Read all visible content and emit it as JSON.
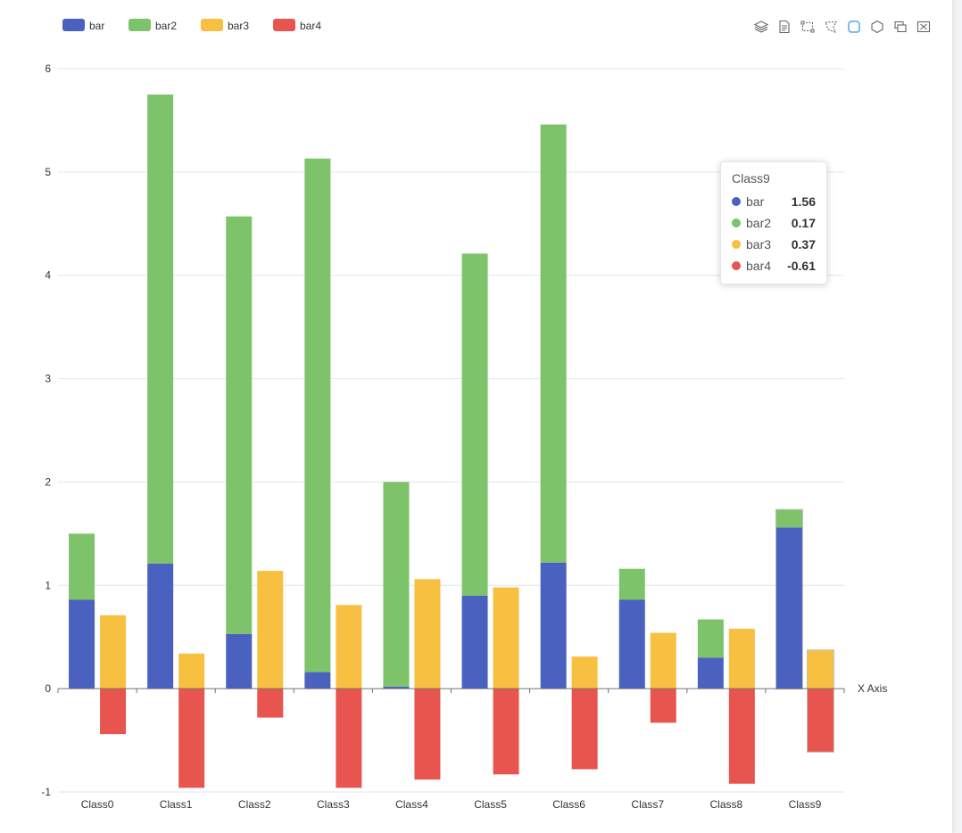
{
  "chart_data": {
    "type": "bar",
    "categories": [
      "Class0",
      "Class1",
      "Class2",
      "Class3",
      "Class4",
      "Class5",
      "Class6",
      "Class7",
      "Class8",
      "Class9"
    ],
    "series": [
      {
        "name": "bar",
        "stack": "A",
        "color": "#4a61c0",
        "values": [
          0.86,
          1.21,
          0.53,
          0.16,
          0.02,
          0.9,
          1.22,
          0.86,
          0.3,
          1.56
        ]
      },
      {
        "name": "bar2",
        "stack": "A",
        "color": "#7cc36a",
        "values": [
          0.64,
          4.54,
          4.04,
          4.97,
          1.98,
          3.31,
          4.24,
          0.3,
          0.37,
          0.17
        ]
      },
      {
        "name": "bar3",
        "stack": "B",
        "color": "#f8c040",
        "values": [
          0.71,
          0.34,
          1.14,
          0.81,
          1.06,
          0.98,
          0.31,
          0.54,
          0.58,
          0.37
        ]
      },
      {
        "name": "bar4",
        "stack": "B",
        "color": "#e8554e",
        "values": [
          -0.44,
          -0.96,
          -0.28,
          -0.96,
          -0.88,
          -0.83,
          -0.78,
          -0.33,
          -0.92,
          -0.61
        ]
      }
    ],
    "xlabel": "X Axis",
    "ylabel": "",
    "ylim": [
      -1,
      6
    ],
    "yticks": [
      "-1",
      "0",
      "1",
      "2",
      "3",
      "4",
      "5",
      "6"
    ],
    "grid": true,
    "legend_position": "top-left"
  },
  "tooltip": {
    "title": "Class9",
    "rows": [
      {
        "name": "bar",
        "value": "1.56",
        "color": "#4a61c0"
      },
      {
        "name": "bar2",
        "value": "0.17",
        "color": "#7cc36a"
      },
      {
        "name": "bar3",
        "value": "0.37",
        "color": "#f8c040"
      },
      {
        "name": "bar4",
        "value": "-0.61",
        "color": "#e8554e"
      }
    ]
  },
  "toolbox": {
    "icons": [
      "stack-icon",
      "data-view-icon",
      "zoom-select-icon",
      "lasso-select-icon",
      "rect-brush-icon",
      "polygon-brush-icon",
      "keep-selection-icon",
      "clear-selection-icon"
    ]
  }
}
